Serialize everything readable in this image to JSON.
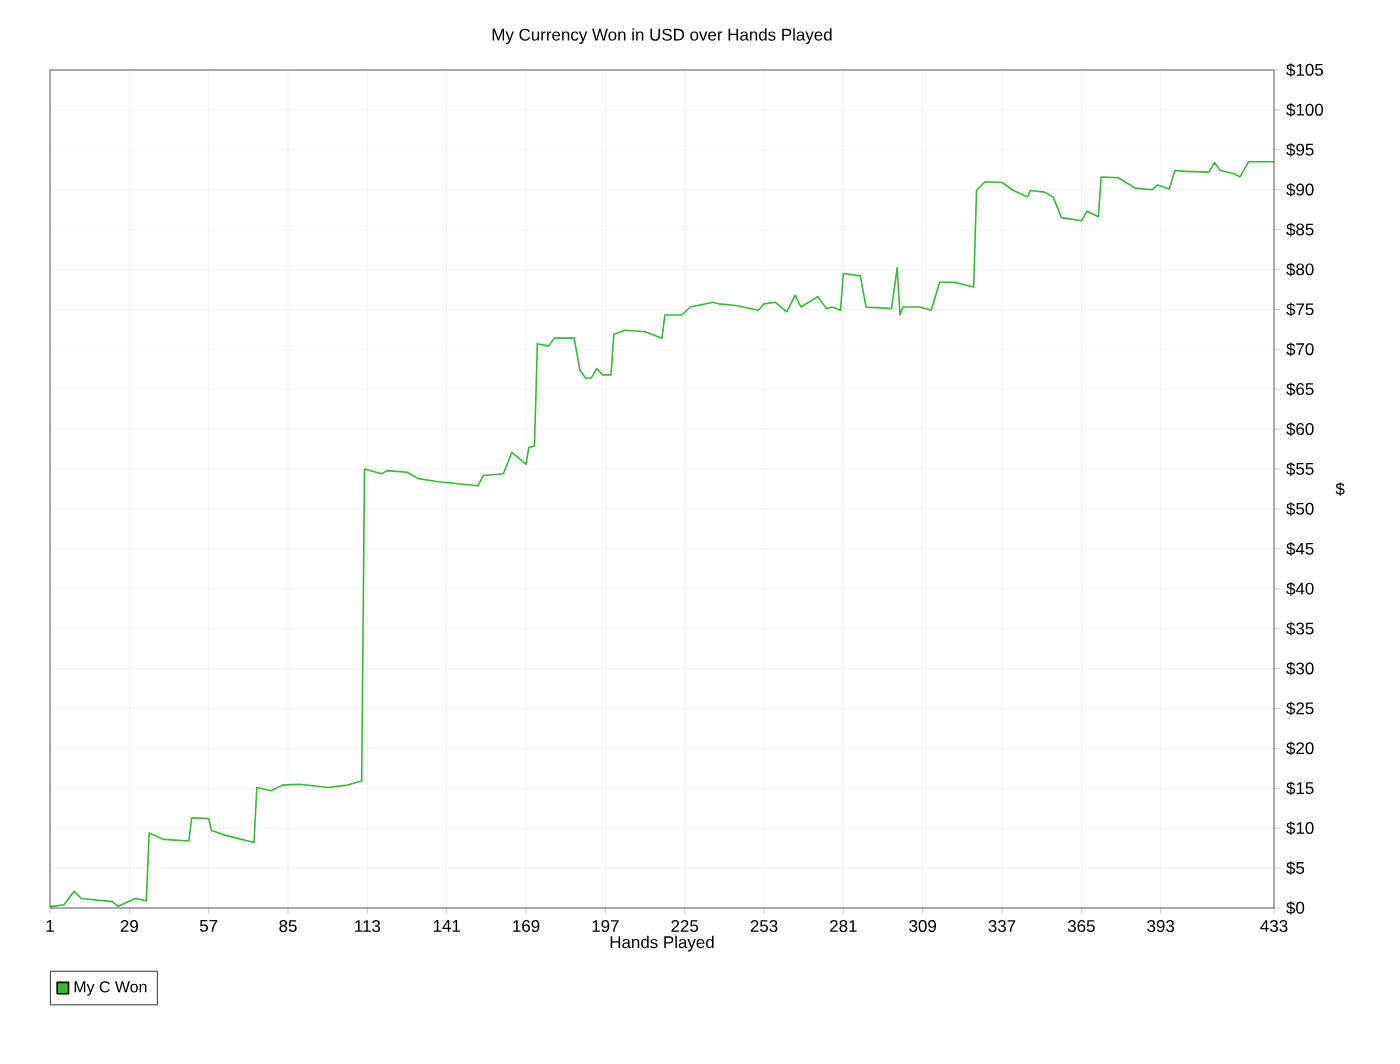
{
  "chart_data": {
    "type": "line",
    "title": "My Currency Won in USD over Hands Played",
    "xlabel": "Hands Played",
    "ylabel": "$",
    "x": [
      1,
      2,
      6,
      9.5,
      12,
      23,
      25,
      31,
      35,
      36,
      41,
      50,
      51,
      57,
      58,
      63,
      73,
      74,
      79,
      83,
      89,
      99,
      106,
      111,
      112,
      118,
      120,
      127,
      131,
      138,
      152,
      154,
      161,
      164,
      169,
      170,
      172,
      173,
      177,
      179,
      186,
      188,
      190,
      192,
      194,
      196,
      199,
      200,
      204,
      211,
      217,
      218,
      224,
      227,
      235,
      237,
      243,
      251,
      253,
      257,
      261,
      264,
      266,
      272,
      275,
      277,
      280,
      281,
      287,
      289,
      298,
      300,
      301,
      302,
      308,
      312,
      315,
      320,
      327,
      328,
      331,
      337,
      341,
      346,
      347,
      352,
      355,
      358,
      365,
      367,
      371,
      372,
      378,
      384,
      390,
      392,
      396,
      398,
      402,
      410,
      412,
      414,
      419,
      421,
      424,
      431,
      433
    ],
    "series": [
      {
        "name": "My C Won",
        "color": "#33bb33",
        "values": [
          0.2,
          0.2,
          0.4,
          2.1,
          1.2,
          0.8,
          0.2,
          1.2,
          0.9,
          9.4,
          8.6,
          8.4,
          11.3,
          11.2,
          9.7,
          9.1,
          8.2,
          15.1,
          14.7,
          15.4,
          15.5,
          15.1,
          15.4,
          15.9,
          55.0,
          54.4,
          54.8,
          54.6,
          53.8,
          53.4,
          52.9,
          54.2,
          54.4,
          57.1,
          55.6,
          57.7,
          57.9,
          70.7,
          70.4,
          71.4,
          71.4,
          67.4,
          66.4,
          66.4,
          67.6,
          66.8,
          66.8,
          71.9,
          72.4,
          72.2,
          71.4,
          74.3,
          74.3,
          75.3,
          75.9,
          75.7,
          75.5,
          74.9,
          75.7,
          75.9,
          74.7,
          76.8,
          75.3,
          76.6,
          75.1,
          75.3,
          74.9,
          79.5,
          79.2,
          75.3,
          75.1,
          80.2,
          74.3,
          75.3,
          75.3,
          74.9,
          78.4,
          78.4,
          77.8,
          89.9,
          91.0,
          90.9,
          89.9,
          89.1,
          89.9,
          89.7,
          89.1,
          86.5,
          86.1,
          87.3,
          86.6,
          91.6,
          91.5,
          90.2,
          90.0,
          90.6,
          90.1,
          92.4,
          92.3,
          92.2,
          93.4,
          92.4,
          92.0,
          91.6,
          93.5,
          93.5,
          93.5
        ]
      }
    ],
    "xlim": [
      1,
      433
    ],
    "xticks": [
      1,
      29,
      57,
      85,
      113,
      141,
      169,
      197,
      225,
      253,
      281,
      309,
      337,
      365,
      393,
      433
    ],
    "ylim": [
      0,
      105
    ],
    "yticks": [
      {
        "value": 0,
        "label": "$0"
      },
      {
        "value": 5,
        "label": "$5"
      },
      {
        "value": 10,
        "label": "$10"
      },
      {
        "value": 15,
        "label": "$15"
      },
      {
        "value": 20,
        "label": "$20"
      },
      {
        "value": 25,
        "label": "$25"
      },
      {
        "value": 30,
        "label": "$30"
      },
      {
        "value": 35,
        "label": "$35"
      },
      {
        "value": 40,
        "label": "$40"
      },
      {
        "value": 45,
        "label": "$45"
      },
      {
        "value": 50,
        "label": "$50"
      },
      {
        "value": 55,
        "label": "$55"
      },
      {
        "value": 60,
        "label": "$60"
      },
      {
        "value": 65,
        "label": "$65"
      },
      {
        "value": 70,
        "label": "$70"
      },
      {
        "value": 75,
        "label": "$75"
      },
      {
        "value": 80,
        "label": "$80"
      },
      {
        "value": 85,
        "label": "$85"
      },
      {
        "value": 90,
        "label": "$90"
      },
      {
        "value": 95,
        "label": "$95"
      },
      {
        "value": 100,
        "label": "$100"
      },
      {
        "value": 105,
        "label": "$105"
      }
    ],
    "grid": true,
    "legend": "bottom left"
  }
}
